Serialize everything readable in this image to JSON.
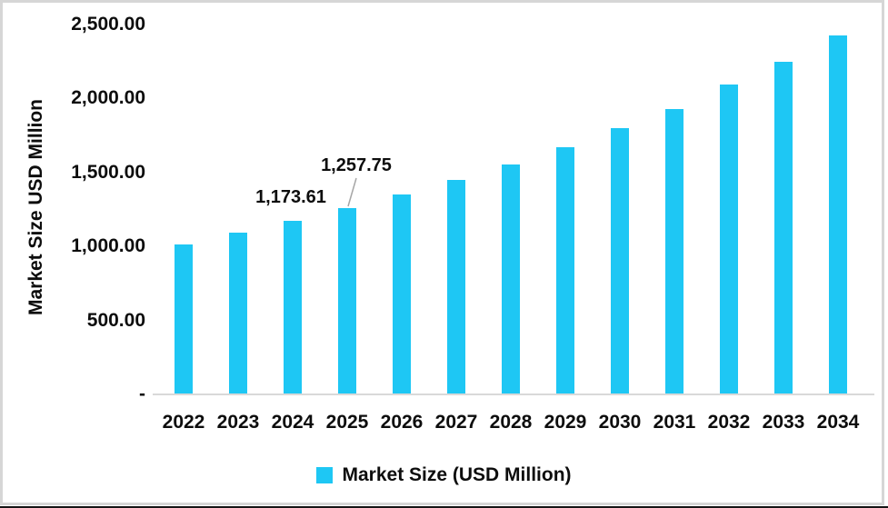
{
  "chart": {
    "y_axis_title": "Market Size USD Million",
    "y_ticks": [
      {
        "value": 2500,
        "label": "2,500.00"
      },
      {
        "value": 2000,
        "label": "2,000.00"
      },
      {
        "value": 1500,
        "label": "1,500.00"
      },
      {
        "value": 1000,
        "label": "1,000.00"
      },
      {
        "value": 500,
        "label": "500.00"
      },
      {
        "value": 0,
        "label": "-"
      }
    ],
    "legend": {
      "label": "Market Size (USD Million)",
      "swatch_color": "#1EC7F4"
    }
  },
  "chart_data": {
    "type": "bar",
    "title": "",
    "xlabel": "",
    "ylabel": "Market Size USD Million",
    "ylim": [
      0,
      2500
    ],
    "grid": false,
    "legend_position": "bottom",
    "bar_color": "#1EC7F4",
    "categories": [
      "2022",
      "2023",
      "2024",
      "2025",
      "2026",
      "2027",
      "2028",
      "2029",
      "2030",
      "2031",
      "2032",
      "2033",
      "2034"
    ],
    "series": [
      {
        "name": "Market Size (USD Million)",
        "values": [
          1010,
          1095,
          1173.61,
          1257.75,
          1350,
          1445,
          1550,
          1668,
          1795,
          1925,
          2090,
          2245,
          2425
        ]
      }
    ],
    "annotations": [
      {
        "category": "2024",
        "text": "1,173.61",
        "leader_line": false
      },
      {
        "category": "2025",
        "text": "1,257.75",
        "leader_line": true
      }
    ]
  }
}
